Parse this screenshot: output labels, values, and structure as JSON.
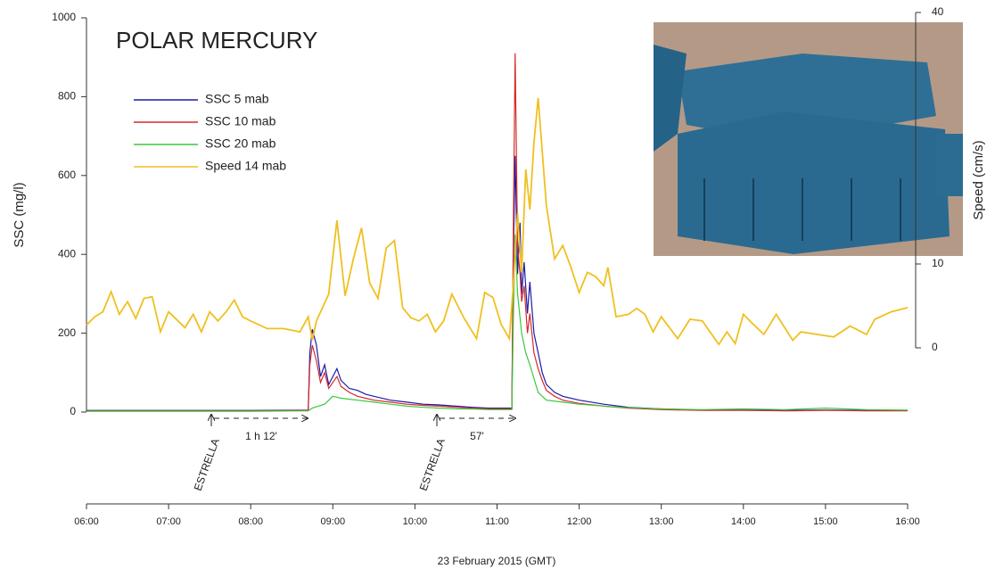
{
  "chart_data": {
    "type": "line",
    "title": "POLAR MERCURY",
    "ylabel": "SSC (mg/l)",
    "y2label": "Speed (cm/s)",
    "xlabel": "23 February 2015 (GMT)",
    "annotations": [
      "ESTRELLA",
      "1 h 12'",
      "ESTRELLA",
      "57'"
    ],
    "xlim": [
      6,
      16
    ],
    "xticks": [
      {
        "value": 6,
        "label": "06:00"
      },
      {
        "value": 7,
        "label": "07:00"
      },
      {
        "value": 8,
        "label": "08:00"
      },
      {
        "value": 9,
        "label": "09:00"
      },
      {
        "value": 10,
        "label": "10:00"
      },
      {
        "value": 11,
        "label": "11:00"
      },
      {
        "value": 12,
        "label": "12:00"
      },
      {
        "value": 13,
        "label": "13:00"
      },
      {
        "value": 14,
        "label": "14:00"
      },
      {
        "value": 15,
        "label": "15:00"
      },
      {
        "value": 16,
        "label": "16:00"
      }
    ],
    "ylim": [
      0,
      1000
    ],
    "yticks": [
      0,
      200,
      400,
      600,
      800,
      1000
    ],
    "y2lim": [
      0,
      40
    ],
    "y2ticks": [
      0,
      10,
      40
    ],
    "legend": "upper left",
    "series": [
      {
        "name": "SSC 5 mab",
        "color": "#1c1ca8",
        "x": [
          6,
          7,
          8,
          8.7,
          8.72,
          8.75,
          8.8,
          8.85,
          8.9,
          8.95,
          9.05,
          9.1,
          9.2,
          9.3,
          9.4,
          9.5,
          9.7,
          9.9,
          10.1,
          10.3,
          10.5,
          10.7,
          10.9,
          11.1,
          11.18,
          11.2,
          11.22,
          11.25,
          11.28,
          11.3,
          11.33,
          11.37,
          11.4,
          11.45,
          11.5,
          11.55,
          11.6,
          11.7,
          11.8,
          12,
          12.3,
          12.6,
          13,
          13.5,
          14,
          14.5,
          15,
          15.5,
          16
        ],
        "values": [
          4,
          4,
          4,
          5,
          150,
          210,
          170,
          90,
          120,
          70,
          110,
          80,
          60,
          55,
          45,
          40,
          30,
          25,
          20,
          18,
          15,
          12,
          10,
          10,
          10,
          400,
          650,
          350,
          480,
          300,
          380,
          250,
          330,
          200,
          150,
          100,
          70,
          50,
          40,
          30,
          20,
          12,
          8,
          5,
          5,
          4,
          5,
          4,
          4
        ]
      },
      {
        "name": "SSC 10 mab",
        "color": "#d42a2a",
        "x": [
          6,
          7,
          8,
          8.7,
          8.72,
          8.75,
          8.8,
          8.85,
          8.9,
          8.95,
          9.05,
          9.1,
          9.2,
          9.3,
          9.4,
          9.5,
          9.7,
          9.9,
          10.1,
          10.3,
          10.5,
          10.7,
          10.9,
          11.1,
          11.18,
          11.2,
          11.22,
          11.25,
          11.28,
          11.3,
          11.33,
          11.37,
          11.4,
          11.45,
          11.5,
          11.55,
          11.6,
          11.7,
          11.8,
          12,
          12.3,
          12.6,
          13,
          13.5,
          14,
          14.5,
          15,
          15.5,
          16
        ],
        "values": [
          3,
          3,
          3,
          4,
          120,
          170,
          130,
          75,
          100,
          60,
          90,
          65,
          50,
          40,
          35,
          30,
          25,
          20,
          17,
          15,
          12,
          10,
          8,
          8,
          8,
          500,
          910,
          420,
          350,
          280,
          320,
          200,
          250,
          150,
          110,
          80,
          55,
          40,
          30,
          22,
          15,
          10,
          6,
          4,
          4,
          3,
          4,
          3,
          3
        ]
      },
      {
        "name": "SSC 20 mab",
        "color": "#3cc83c",
        "x": [
          6,
          7,
          8,
          8.7,
          8.75,
          8.9,
          9,
          9.1,
          9.3,
          9.5,
          9.7,
          9.9,
          10.1,
          10.3,
          10.5,
          10.7,
          10.9,
          11.1,
          11.18,
          11.2,
          11.22,
          11.25,
          11.3,
          11.35,
          11.4,
          11.5,
          11.6,
          11.8,
          12,
          12.5,
          13,
          13.5,
          14,
          14.5,
          15,
          15.5,
          16
        ],
        "values": [
          2,
          2,
          2,
          3,
          10,
          20,
          40,
          35,
          30,
          25,
          20,
          15,
          12,
          10,
          8,
          8,
          6,
          6,
          6,
          250,
          450,
          300,
          200,
          150,
          120,
          50,
          30,
          25,
          20,
          12,
          8,
          6,
          8,
          6,
          10,
          6,
          5
        ]
      },
      {
        "name": "Speed 14 mab",
        "color": "#f0c020",
        "axis": "y2",
        "x": [
          6,
          6.1,
          6.2,
          6.3,
          6.4,
          6.5,
          6.6,
          6.7,
          6.8,
          6.9,
          7,
          7.2,
          7.3,
          7.4,
          7.5,
          7.6,
          7.7,
          7.8,
          7.9,
          8,
          8.2,
          8.4,
          8.6,
          8.7,
          8.75,
          8.8,
          8.95,
          9.05,
          9.15,
          9.25,
          9.35,
          9.45,
          9.55,
          9.65,
          9.75,
          9.85,
          9.95,
          10.05,
          10.15,
          10.25,
          10.35,
          10.45,
          10.6,
          10.75,
          10.85,
          10.95,
          11.05,
          11.15,
          11.2,
          11.25,
          11.3,
          11.35,
          11.4,
          11.45,
          11.5,
          11.6,
          11.7,
          11.8,
          11.9,
          12,
          12.1,
          12.2,
          12.3,
          12.35,
          12.45,
          12.6,
          12.7,
          12.8,
          12.9,
          13,
          13.2,
          13.35,
          13.5,
          13.7,
          13.8,
          13.9,
          14,
          14.1,
          14.25,
          14.4,
          14.6,
          14.7,
          14.9,
          15.1,
          15.3,
          15.5,
          15.6,
          15.8,
          16
        ],
        "values": [
          2.7,
          3.7,
          4.3,
          6.7,
          4.0,
          5.5,
          3.5,
          5.9,
          6.1,
          1.9,
          4.3,
          2.4,
          4.0,
          1.9,
          4.3,
          3.2,
          4.3,
          5.7,
          3.7,
          3.2,
          2.3,
          2.3,
          1.9,
          3.7,
          0.9,
          3.2,
          6.4,
          15.2,
          6.2,
          10.6,
          14.3,
          7.7,
          5.9,
          11.9,
          12.8,
          4.8,
          3.6,
          3.2,
          4.0,
          1.9,
          3.2,
          6.4,
          3.5,
          1.1,
          6.6,
          6.0,
          2.8,
          1.1,
          7.7,
          16,
          9.0,
          21.3,
          16.5,
          24.5,
          29.8,
          17,
          10.6,
          12.2,
          9.6,
          6.6,
          9.0,
          8.5,
          7.4,
          9.6,
          3.7,
          4.0,
          4.7,
          4.0,
          1.9,
          3.7,
          1.1,
          3.4,
          3.2,
          0.4,
          1.9,
          0.5,
          4.0,
          3.0,
          1.6,
          4.0,
          0.9,
          1.9,
          1.6,
          1.3,
          2.6,
          1.6,
          3.4,
          4.3,
          4.8
        ]
      }
    ]
  }
}
